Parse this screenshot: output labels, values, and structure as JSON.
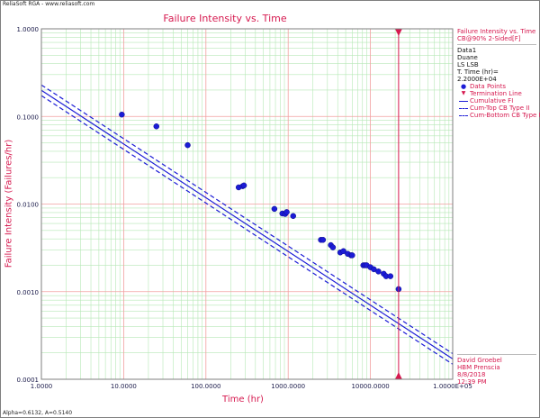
{
  "header": {
    "app_text": "ReliaSoft RGA - www.reliasoft.com"
  },
  "chart_data": {
    "type": "scatter",
    "title": "Failure Intensity vs. Time",
    "xlabel": "Time (hr)",
    "ylabel": "Failure Intensity (Failures/hr)",
    "x_scale": "log",
    "y_scale": "log",
    "xlim": [
      1,
      100000
    ],
    "ylim": [
      0.0001,
      1
    ],
    "grid": true,
    "x_ticks": [
      "1.0000",
      "10.0000",
      "100.0000",
      "1000.0000",
      "10000.0000",
      "1.0000E+05"
    ],
    "y_ticks": [
      "1.0000",
      "0.1000",
      "0.0100",
      "0.0010",
      "0.0001"
    ],
    "x_tick_values": [
      1,
      10,
      100,
      1000,
      10000,
      100000
    ],
    "y_tick_values": [
      1,
      0.1,
      0.01,
      0.001,
      0.0001
    ],
    "data_points": [
      [
        9.5,
        0.105
      ],
      [
        25,
        0.077
      ],
      [
        60,
        0.047
      ],
      [
        250,
        0.0155
      ],
      [
        280,
        0.016
      ],
      [
        290,
        0.0163
      ],
      [
        680,
        0.0088
      ],
      [
        850,
        0.0078
      ],
      [
        920,
        0.0077
      ],
      [
        960,
        0.0081
      ],
      [
        1150,
        0.0073
      ],
      [
        2500,
        0.0039
      ],
      [
        2650,
        0.0039
      ],
      [
        3300,
        0.0034
      ],
      [
        3500,
        0.0032
      ],
      [
        4300,
        0.0028
      ],
      [
        4700,
        0.0029
      ],
      [
        5300,
        0.0027
      ],
      [
        5800,
        0.0026
      ],
      [
        6000,
        0.0026
      ],
      [
        8200,
        0.002
      ],
      [
        8600,
        0.002
      ],
      [
        9000,
        0.002
      ],
      [
        10000,
        0.0019
      ],
      [
        11000,
        0.0018
      ],
      [
        12500,
        0.0017
      ],
      [
        14500,
        0.0016
      ],
      [
        15500,
        0.0015
      ],
      [
        17500,
        0.0015
      ],
      [
        22000,
        0.00107
      ]
    ],
    "termination_time": 22000,
    "cumulative_fi": {
      "alpha": 0.6132,
      "lambda": 0.514
    },
    "confidence_bound_ratio": 1.15,
    "legend_placement": "right panel"
  },
  "legend": {
    "title_line1": "Failure Intensity vs. Time",
    "title_line2": "CB@90% 2-Sided[F]",
    "data_name": "Data1",
    "model": "Duane",
    "method": "LS LSB",
    "term_time": "T. Time (hr)= 2.2000E+04",
    "items": [
      {
        "symbol": "dot",
        "label": "Data Points"
      },
      {
        "symbol": "triangle",
        "label": "Termination Line"
      },
      {
        "symbol": "line",
        "label": "Cumulative FI"
      },
      {
        "symbol": "dash",
        "label": "Cum-Top CB Type II"
      },
      {
        "symbol": "dash",
        "label": "Cum-Bottom CB Type II"
      }
    ]
  },
  "author": {
    "name": "David Groebel",
    "company": "HBM Prenscia",
    "date": "8/8/2018",
    "time": "12:39 PM"
  },
  "status": {
    "params": "Alpha=0.6132, A=0.5140"
  },
  "colors": {
    "red": "#d6194f",
    "blue": "#1c1cd6",
    "grid_major": "#f2a0a0",
    "grid_minor": "#b6e8b6"
  }
}
